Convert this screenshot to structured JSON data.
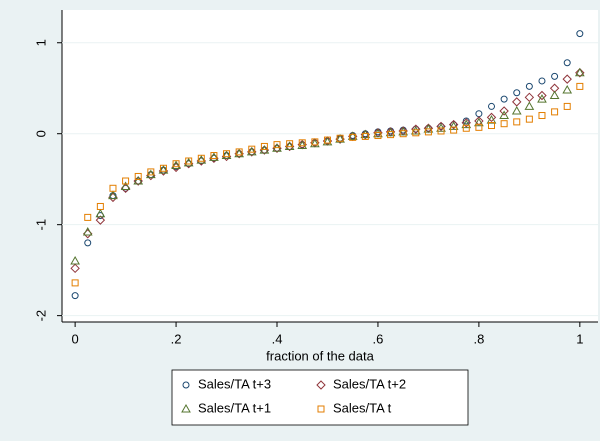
{
  "chart_data": {
    "type": "scatter",
    "xlabel": "fraction of the data",
    "x": [
      0,
      0.025,
      0.05,
      0.075,
      0.1,
      0.125,
      0.15,
      0.175,
      0.2,
      0.225,
      0.25,
      0.275,
      0.3,
      0.325,
      0.35,
      0.375,
      0.4,
      0.425,
      0.45,
      0.475,
      0.5,
      0.525,
      0.55,
      0.575,
      0.6,
      0.625,
      0.65,
      0.675,
      0.7,
      0.725,
      0.75,
      0.775,
      0.8,
      0.825,
      0.85,
      0.875,
      0.9,
      0.925,
      0.95,
      0.975,
      1
    ],
    "series": [
      {
        "name": "Sales/TA t+3",
        "color": "#1a476f",
        "marker": "circle",
        "values": [
          -1.78,
          -1.2,
          -0.9,
          -0.68,
          -0.6,
          -0.52,
          -0.45,
          -0.4,
          -0.36,
          -0.33,
          -0.3,
          -0.27,
          -0.24,
          -0.22,
          -0.2,
          -0.18,
          -0.16,
          -0.14,
          -0.12,
          -0.1,
          -0.08,
          -0.05,
          -0.02,
          0.0,
          0.02,
          0.03,
          0.04,
          0.05,
          0.06,
          0.08,
          0.1,
          0.14,
          0.22,
          0.3,
          0.38,
          0.45,
          0.52,
          0.58,
          0.63,
          0.78,
          1.1
        ]
      },
      {
        "name": "Sales/TA t+2",
        "color": "#90353b",
        "marker": "diamond",
        "values": [
          -1.48,
          -1.1,
          -0.95,
          -0.7,
          -0.6,
          -0.52,
          -0.46,
          -0.41,
          -0.37,
          -0.33,
          -0.3,
          -0.27,
          -0.25,
          -0.22,
          -0.2,
          -0.18,
          -0.16,
          -0.14,
          -0.12,
          -0.1,
          -0.08,
          -0.06,
          -0.03,
          -0.01,
          0.01,
          0.02,
          0.03,
          0.05,
          0.06,
          0.08,
          0.1,
          0.12,
          0.14,
          0.18,
          0.25,
          0.35,
          0.4,
          0.42,
          0.5,
          0.6,
          0.67
        ]
      },
      {
        "name": "Sales/TA t+1",
        "color": "#55752f",
        "marker": "triangle",
        "values": [
          -1.4,
          -1.08,
          -0.88,
          -0.68,
          -0.58,
          -0.52,
          -0.45,
          -0.4,
          -0.35,
          -0.32,
          -0.29,
          -0.26,
          -0.24,
          -0.22,
          -0.2,
          -0.18,
          -0.16,
          -0.14,
          -0.13,
          -0.11,
          -0.09,
          -0.06,
          -0.03,
          -0.01,
          0.0,
          0.01,
          0.02,
          0.03,
          0.05,
          0.06,
          0.08,
          0.1,
          0.12,
          0.15,
          0.2,
          0.25,
          0.3,
          0.38,
          0.42,
          0.48,
          0.67
        ]
      },
      {
        "name": "Sales/TA t",
        "color": "#e37e00",
        "marker": "square",
        "values": [
          -1.64,
          -0.92,
          -0.8,
          -0.6,
          -0.52,
          -0.47,
          -0.42,
          -0.38,
          -0.33,
          -0.3,
          -0.27,
          -0.24,
          -0.22,
          -0.2,
          -0.17,
          -0.14,
          -0.12,
          -0.11,
          -0.1,
          -0.09,
          -0.07,
          -0.05,
          -0.04,
          -0.03,
          -0.02,
          -0.01,
          0.0,
          0.01,
          0.02,
          0.03,
          0.04,
          0.06,
          0.07,
          0.09,
          0.11,
          0.13,
          0.16,
          0.2,
          0.24,
          0.3,
          0.52
        ]
      }
    ],
    "xlim": [
      -0.026,
      1.036
    ],
    "ylim": [
      -2.07,
      1.36
    ],
    "xticks": [
      0,
      {
        "value": 0.2,
        "label": ".2"
      },
      {
        "value": 0.4,
        "label": ".4"
      },
      {
        "value": 0.6,
        "label": ".6"
      },
      {
        "value": 0.8,
        "label": ".8"
      },
      1
    ],
    "yticks": [
      -2,
      -1,
      0,
      1
    ],
    "grid": true,
    "legend": "bottom"
  }
}
